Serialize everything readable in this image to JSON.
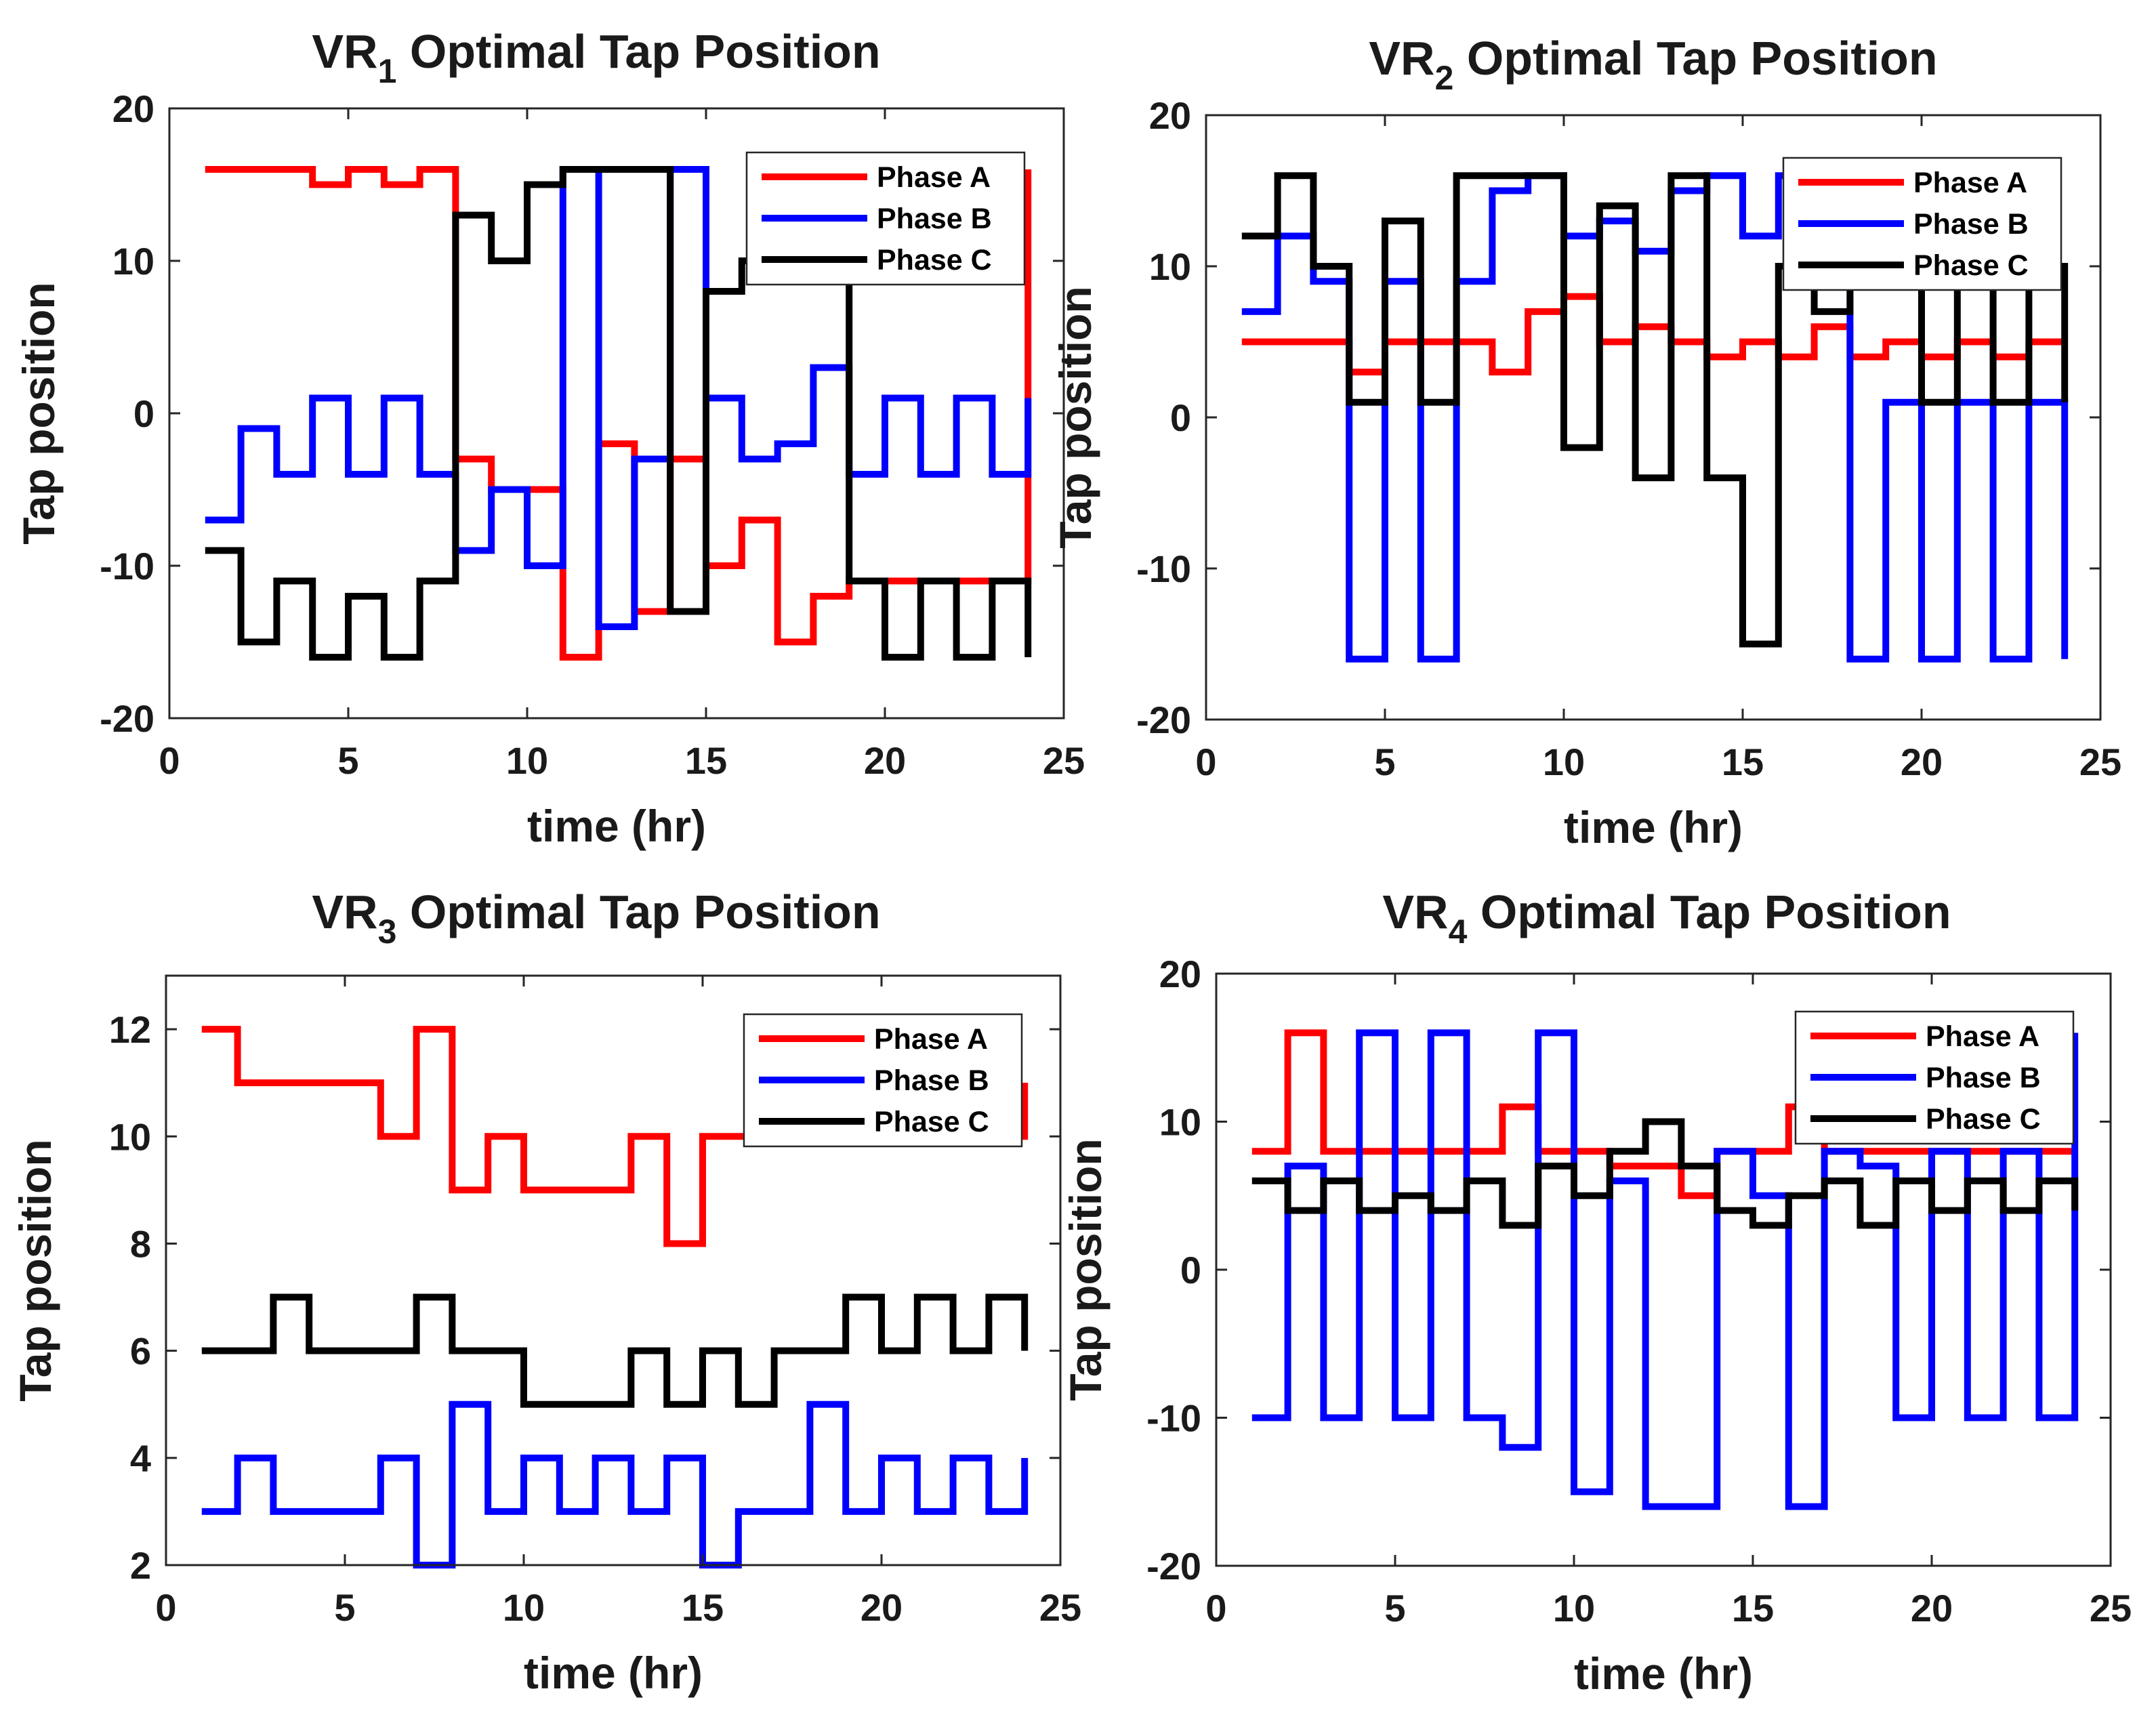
{
  "figure": {
    "colors": {
      "phase_a": "#ff0000",
      "phase_b": "#0000ff",
      "phase_c": "#000000"
    }
  },
  "chart_data": [
    {
      "type": "line",
      "title": "VR",
      "title_sub": "1",
      "title_rest": " Optimal Tap Position",
      "xlabel": "time (hr)",
      "ylabel": "Tap position",
      "xlim": [
        0,
        25
      ],
      "ylim": [
        -20,
        20
      ],
      "xticks": [
        0,
        5,
        10,
        15,
        20,
        25
      ],
      "yticks": [
        -20,
        -10,
        0,
        10,
        20
      ],
      "legend_position": "top-right",
      "x": [
        1,
        2,
        3,
        4,
        5,
        6,
        7,
        8,
        9,
        10,
        11,
        12,
        13,
        14,
        15,
        16,
        17,
        18,
        19,
        20,
        21,
        22,
        23,
        24
      ],
      "series": [
        {
          "name": "Phase A",
          "color": "#ff0000",
          "values": [
            16,
            16,
            16,
            15,
            16,
            15,
            16,
            -3,
            -5,
            -5,
            -16,
            -2,
            -13,
            -3,
            -10,
            -7,
            -15,
            -12,
            -11,
            -11,
            -11,
            -11,
            -11,
            16
          ]
        },
        {
          "name": "Phase B",
          "color": "#0000ff",
          "values": [
            -7,
            -1,
            -4,
            1,
            -4,
            1,
            -4,
            -9,
            -5,
            -10,
            16,
            -14,
            -3,
            16,
            1,
            -3,
            -2,
            3,
            -4,
            1,
            -4,
            1,
            -4,
            1
          ]
        },
        {
          "name": "Phase C",
          "color": "#000000",
          "values": [
            -9,
            -15,
            -11,
            -16,
            -12,
            -16,
            -11,
            13,
            10,
            15,
            16,
            16,
            16,
            -13,
            8,
            10,
            10,
            10,
            -11,
            -16,
            -11,
            -16,
            -11,
            -16
          ]
        }
      ]
    },
    {
      "type": "line",
      "title": "VR",
      "title_sub": "2",
      "title_rest": " Optimal Tap Position",
      "xlabel": "time (hr)",
      "ylabel": "Tap position",
      "xlim": [
        0,
        25
      ],
      "ylim": [
        -20,
        20
      ],
      "xticks": [
        0,
        5,
        10,
        15,
        20,
        25
      ],
      "yticks": [
        -20,
        -10,
        0,
        10,
        20
      ],
      "legend_position": "top-right",
      "x": [
        1,
        2,
        3,
        4,
        5,
        6,
        7,
        8,
        9,
        10,
        11,
        12,
        13,
        14,
        15,
        16,
        17,
        18,
        19,
        20,
        21,
        22,
        23,
        24
      ],
      "series": [
        {
          "name": "Phase A",
          "color": "#ff0000",
          "values": [
            5,
            5,
            5,
            3,
            5,
            5,
            5,
            3,
            7,
            8,
            5,
            6,
            5,
            4,
            5,
            4,
            6,
            4,
            5,
            4,
            5,
            4,
            5,
            5
          ]
        },
        {
          "name": "Phase B",
          "color": "#0000ff",
          "values": [
            7,
            12,
            9,
            -16,
            9,
            -16,
            9,
            15,
            16,
            12,
            13,
            11,
            15,
            16,
            12,
            16,
            16,
            -16,
            1,
            -16,
            1,
            -16,
            1,
            -16
          ]
        },
        {
          "name": "Phase C",
          "color": "#000000",
          "values": [
            12,
            16,
            10,
            1,
            13,
            1,
            16,
            16,
            16,
            -2,
            14,
            -4,
            16,
            -4,
            -15,
            10,
            7,
            10,
            10,
            1,
            10,
            1,
            10,
            1
          ]
        }
      ]
    },
    {
      "type": "line",
      "title": "VR",
      "title_sub": "3",
      "title_rest": " Optimal Tap Position",
      "xlabel": "time (hr)",
      "ylabel": "Tap position",
      "xlim": [
        0,
        25
      ],
      "ylim": [
        2,
        13
      ],
      "xticks": [
        0,
        5,
        10,
        15,
        20,
        25
      ],
      "yticks": [
        2,
        4,
        6,
        8,
        10,
        12
      ],
      "legend_position": "top-right",
      "x": [
        1,
        2,
        3,
        4,
        5,
        6,
        7,
        8,
        9,
        10,
        11,
        12,
        13,
        14,
        15,
        16,
        17,
        18,
        19,
        20,
        21,
        22,
        23,
        24
      ],
      "series": [
        {
          "name": "Phase A",
          "color": "#ff0000",
          "values": [
            12,
            11,
            11,
            11,
            11,
            10,
            12,
            9,
            10,
            9,
            9,
            9,
            10,
            8,
            10,
            10,
            10,
            10,
            10,
            10,
            10,
            10,
            10,
            11
          ]
        },
        {
          "name": "Phase B",
          "color": "#0000ff",
          "values": [
            3,
            4,
            3,
            3,
            3,
            4,
            2,
            5,
            3,
            4,
            3,
            4,
            3,
            4,
            2,
            3,
            3,
            5,
            3,
            4,
            3,
            4,
            3,
            4
          ]
        },
        {
          "name": "Phase C",
          "color": "#000000",
          "values": [
            6,
            6,
            7,
            6,
            6,
            6,
            7,
            6,
            6,
            5,
            5,
            5,
            6,
            5,
            6,
            5,
            6,
            6,
            7,
            6,
            7,
            6,
            7,
            6
          ]
        }
      ]
    },
    {
      "type": "line",
      "title": "VR",
      "title_sub": "4",
      "title_rest": " Optimal Tap Position",
      "xlabel": "time (hr)",
      "ylabel": "Tap position",
      "xlim": [
        0,
        25
      ],
      "ylim": [
        -20,
        20
      ],
      "xticks": [
        0,
        5,
        10,
        15,
        20,
        25
      ],
      "yticks": [
        -20,
        -10,
        0,
        10,
        20
      ],
      "legend_position": "top-right",
      "x": [
        1,
        2,
        3,
        4,
        5,
        6,
        7,
        8,
        9,
        10,
        11,
        12,
        13,
        14,
        15,
        16,
        17,
        18,
        19,
        20,
        21,
        22,
        23,
        24
      ],
      "series": [
        {
          "name": "Phase A",
          "color": "#ff0000",
          "values": [
            8,
            16,
            8,
            8,
            8,
            8,
            8,
            11,
            8,
            8,
            7,
            7,
            5,
            8,
            8,
            11,
            8,
            8,
            8,
            8,
            8,
            8,
            8,
            8
          ]
        },
        {
          "name": "Phase B",
          "color": "#0000ff",
          "values": [
            -10,
            7,
            -10,
            16,
            -10,
            16,
            -10,
            -12,
            16,
            -15,
            6,
            -16,
            -16,
            8,
            5,
            -16,
            8,
            7,
            -10,
            8,
            -10,
            8,
            -10,
            16
          ]
        },
        {
          "name": "Phase C",
          "color": "#000000",
          "values": [
            6,
            4,
            6,
            4,
            5,
            4,
            6,
            3,
            7,
            5,
            8,
            10,
            7,
            4,
            3,
            5,
            6,
            3,
            6,
            4,
            6,
            4,
            6,
            4
          ]
        }
      ]
    }
  ]
}
